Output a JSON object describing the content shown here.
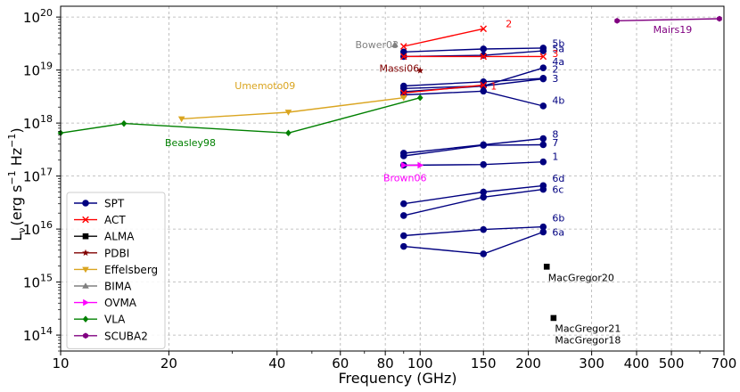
{
  "chart_data": {
    "type": "line",
    "xscale": "log",
    "yscale": "log",
    "xlim": [
      10,
      700
    ],
    "ylim": [
      50000000000000.0,
      1.6e+20
    ],
    "xlabel": "Frequency (GHz)",
    "ylabel_prefix": "L",
    "ylabel_sub": "ν",
    "ylabel_unit": "(erg s",
    "ylabel_unit2": " Hz",
    "ylabel_end": ")",
    "ylabel_exp": "−1",
    "grid": true,
    "x_ticks": [
      {
        "value": 10,
        "label": "10"
      },
      {
        "value": 20,
        "label": "20"
      },
      {
        "value": 40,
        "label": "40"
      },
      {
        "value": 60,
        "label": "60"
      },
      {
        "value": 80,
        "label": "80"
      },
      {
        "value": 100,
        "label": "100"
      },
      {
        "value": 150,
        "label": "150"
      },
      {
        "value": 200,
        "label": "200"
      },
      {
        "value": 300,
        "label": "300"
      },
      {
        "value": 400,
        "label": "400"
      },
      {
        "value": 500,
        "label": "500"
      },
      {
        "value": 700,
        "label": "700"
      }
    ],
    "y_ticks": [
      {
        "value": 100000000000000.0,
        "base": "10",
        "exp": "14"
      },
      {
        "value": 1000000000000000.0,
        "base": "10",
        "exp": "15"
      },
      {
        "value": 1e+16,
        "base": "10",
        "exp": "16"
      },
      {
        "value": 1e+17,
        "base": "10",
        "exp": "17"
      },
      {
        "value": 1e+18,
        "base": "10",
        "exp": "18"
      },
      {
        "value": 1e+19,
        "base": "10",
        "exp": "19"
      },
      {
        "value": 1e+20,
        "base": "10",
        "exp": "20"
      }
    ],
    "series": [
      {
        "name": "SPT",
        "color": "#000080",
        "marker": "circle",
        "lines": [
          {
            "label": "5b",
            "x": [
              90,
              150,
              220
            ],
            "y": [
              2.2e+19,
              2.5e+19,
              2.6e+19
            ]
          },
          {
            "label": "5a",
            "x": [
              90,
              150,
              220
            ],
            "y": [
              1.8e+19,
              1.9e+19,
              2.3e+19
            ]
          },
          {
            "label": "4a",
            "x": [
              90,
              150,
              220
            ],
            "y": [
              3.9e+18,
              5e+18,
              1.1e+19
            ]
          },
          {
            "label": "2",
            "x": [
              90,
              150,
              220
            ],
            "y": [
              5e+18,
              6e+18,
              7e+18
            ]
          },
          {
            "label": "3",
            "x": [
              90,
              150,
              220
            ],
            "y": [
              4.5e+18,
              5e+18,
              6.8e+18
            ]
          },
          {
            "label": "4b",
            "x": [
              90,
              150,
              220
            ],
            "y": [
              3.4e+18,
              4e+18,
              2.1e+18
            ]
          },
          {
            "label": "8",
            "x": [
              90,
              150,
              220
            ],
            "y": [
              2.7e+17,
              3.9e+17,
              5.1e+17
            ]
          },
          {
            "label": "7",
            "x": [
              90,
              150,
              220
            ],
            "y": [
              2.4e+17,
              3.8e+17,
              3.9e+17
            ]
          },
          {
            "label": "1",
            "x": [
              90,
              150,
              220
            ],
            "y": [
              1.6e+17,
              1.65e+17,
              1.85e+17
            ]
          },
          {
            "label": "6d",
            "x": [
              90,
              150,
              220
            ],
            "y": [
              3e+16,
              5e+16,
              6.6e+16
            ]
          },
          {
            "label": "6c",
            "x": [
              90,
              150,
              220
            ],
            "y": [
              1.8e+16,
              4e+16,
              5.6e+16
            ]
          },
          {
            "label": "6b",
            "x": [
              90,
              150,
              220
            ],
            "y": [
              7500000000000000.0,
              9800000000000000.0,
              1.1e+16
            ]
          },
          {
            "label": "6a",
            "x": [
              90,
              150,
              220
            ],
            "y": [
              4700000000000000.0,
              3400000000000000.0,
              8800000000000000.0
            ]
          }
        ]
      },
      {
        "name": "ACT",
        "color": "#ff0000",
        "marker": "x",
        "lines": [
          {
            "label": "2",
            "x": [
              90,
              150
            ],
            "y": [
              2.8e+19,
              6e+19
            ]
          },
          {
            "label": "3",
            "x": [
              90,
              150,
              220
            ],
            "y": [
              1.8e+19,
              1.8e+19,
              1.8e+19
            ]
          },
          {
            "label": "1",
            "x": [
              90,
              150
            ],
            "y": [
              3.7e+18,
              5.2e+18
            ]
          }
        ]
      },
      {
        "name": "ALMA",
        "color": "#000000",
        "marker": "square",
        "lines": [
          {
            "label": "",
            "x": [
              225
            ],
            "y": [
              1950000000000000.0
            ]
          },
          {
            "label": "",
            "x": [
              235
            ],
            "y": [
              210000000000000.0
            ]
          }
        ]
      },
      {
        "name": "PDBI",
        "color": "#800000",
        "marker": "star",
        "lines": [
          {
            "label": "",
            "x": [
              100
            ],
            "y": [
              9.8e+18
            ]
          }
        ]
      },
      {
        "name": "Effelsberg",
        "color": "#daa520",
        "marker": "triangle-down",
        "lines": [
          {
            "label": "",
            "x": [
              21.7,
              43,
              90
            ],
            "y": [
              1.2e+18,
              1.6e+18,
              3e+18
            ]
          }
        ]
      },
      {
        "name": "BIMA",
        "color": "#808080",
        "marker": "triangle-up",
        "lines": [
          {
            "label": "",
            "x": [
              85
            ],
            "y": [
              3e+19
            ]
          }
        ]
      },
      {
        "name": "OVMA",
        "color": "#ff00ff",
        "marker": "triangle-right",
        "lines": [
          {
            "label": "",
            "x": [
              90,
              100
            ],
            "y": [
              1.6e+17,
              1.6e+17
            ]
          }
        ]
      },
      {
        "name": "VLA",
        "color": "#008000",
        "marker": "diamond",
        "lines": [
          {
            "label": "",
            "x": [
              10,
              15,
              43,
              100
            ],
            "y": [
              6.5e+17,
              9.8e+17,
              6.5e+17,
              3e+18
            ]
          }
        ]
      },
      {
        "name": "SCUBA2",
        "color": "#800080",
        "marker": "hexagon",
        "lines": [
          {
            "label": "",
            "x": [
              353,
              680
            ],
            "y": [
              8.5e+19,
              9.3e+19
            ]
          }
        ]
      }
    ],
    "annotations": [
      {
        "text": "5b",
        "x": 233,
        "y": 2.75e+19,
        "color": "#000080"
      },
      {
        "text": "5a",
        "x": 233,
        "y": 2.2e+19,
        "color": "#000080"
      },
      {
        "text": "3",
        "x": 233,
        "y": 1.75e+19,
        "color": "#ff0000"
      },
      {
        "text": "4a",
        "x": 233,
        "y": 1.25e+19,
        "color": "#000080"
      },
      {
        "text": "2",
        "x": 233,
        "y": 9e+18,
        "color": "#000080"
      },
      {
        "text": "3",
        "x": 233,
        "y": 6e+18,
        "color": "#000080"
      },
      {
        "text": "4b",
        "x": 233,
        "y": 2.3e+18,
        "color": "#000080"
      },
      {
        "text": "8",
        "x": 233,
        "y": 5.3e+17,
        "color": "#000080"
      },
      {
        "text": "7",
        "x": 233,
        "y": 3.7e+17,
        "color": "#000080"
      },
      {
        "text": "1",
        "x": 233,
        "y": 2e+17,
        "color": "#000080"
      },
      {
        "text": "6d",
        "x": 233,
        "y": 7.8e+16,
        "color": "#000080"
      },
      {
        "text": "6c",
        "x": 233,
        "y": 4.8e+16,
        "color": "#000080"
      },
      {
        "text": "6b",
        "x": 233,
        "y": 1.4e+16,
        "color": "#000080"
      },
      {
        "text": "6a",
        "x": 233,
        "y": 7500000000000000.0,
        "color": "#000080"
      },
      {
        "text": "2",
        "x": 173,
        "y": 6.5e+19,
        "color": "#ff0000"
      },
      {
        "text": "1",
        "x": 157,
        "y": 4.3e+18,
        "color": "#ff0000"
      },
      {
        "text": "Bower03",
        "x": 66,
        "y": 2.6e+19,
        "color": "#808080"
      },
      {
        "text": "Massi06",
        "x": 77,
        "y": 9.3e+18,
        "color": "#800000"
      },
      {
        "text": "Umemoto09",
        "x": 30.5,
        "y": 4.4e+18,
        "color": "#daa520"
      },
      {
        "text": "Beasley98",
        "x": 19.5,
        "y": 3.7e+17,
        "color": "#008000"
      },
      {
        "text": "Brown06",
        "x": 79,
        "y": 8e+16,
        "color": "#ff00ff"
      },
      {
        "text": "Mairs19",
        "x": 445,
        "y": 5e+19,
        "color": "#800080"
      },
      {
        "text": "MacGregor20",
        "x": 227,
        "y": 1050000000000000.0,
        "color": "#000000"
      },
      {
        "text": "MacGregor21",
        "x": 237,
        "y": 115000000000000.0,
        "color": "#000000"
      },
      {
        "text": "MacGregor18",
        "x": 237,
        "y": 70000000000000.0,
        "color": "#000000"
      }
    ]
  }
}
